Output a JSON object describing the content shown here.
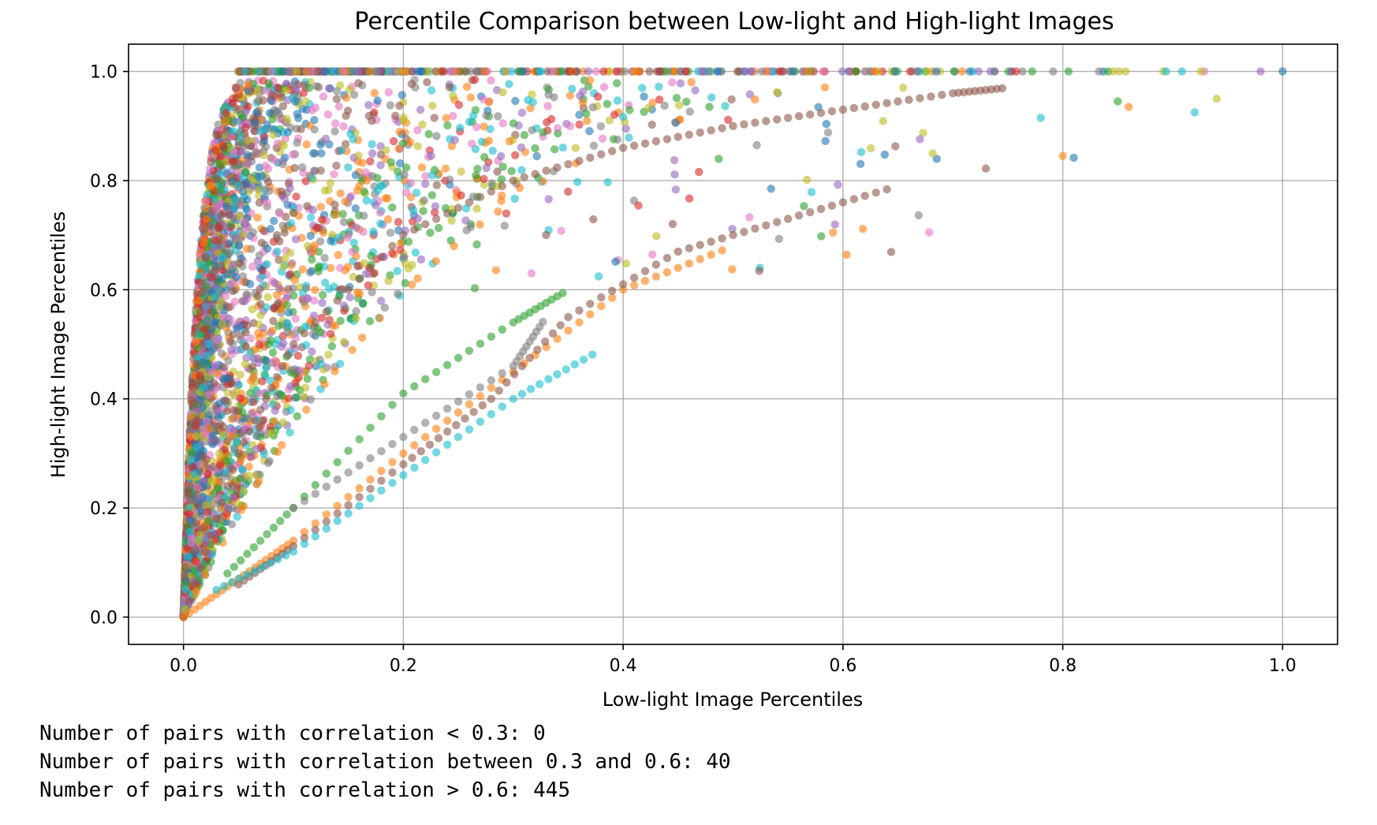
{
  "chart_data": {
    "type": "scatter",
    "title": "Percentile Comparison between Low-light and High-light Images",
    "xlabel": "Low-light Image Percentiles",
    "ylabel": "High-light Image Percentiles",
    "xlim": [
      -0.05,
      1.05
    ],
    "ylim": [
      -0.05,
      1.05
    ],
    "xticks": [
      "0.0",
      "0.2",
      "0.4",
      "0.6",
      "0.8",
      "1.0"
    ],
    "yticks": [
      "0.0",
      "0.2",
      "0.4",
      "0.6",
      "0.8",
      "1.0"
    ],
    "grid": true,
    "legend": "none",
    "series_count_approx": 485,
    "palette": [
      "#1f77b4",
      "#ff7f0e",
      "#2ca02c",
      "#d62728",
      "#9467bd",
      "#8c564b",
      "#e377c2",
      "#7f7f7f",
      "#bcbd22",
      "#17becf"
    ],
    "marker_alpha": 0.6,
    "representative_series": [
      {
        "color": "#8c564b",
        "x": [
          0,
          0.05,
          0.1,
          0.2,
          0.3,
          0.4,
          0.5,
          0.6,
          0.7,
          0.75
        ],
        "y": [
          0,
          0.3,
          0.5,
          0.7,
          0.8,
          0.86,
          0.9,
          0.93,
          0.96,
          0.97
        ]
      },
      {
        "color": "#ff7f0e",
        "x": [
          0,
          0.05,
          0.1,
          0.2,
          0.3,
          0.4,
          0.5
        ],
        "y": [
          0,
          0.07,
          0.14,
          0.3,
          0.45,
          0.6,
          0.68
        ]
      },
      {
        "color": "#8c564b",
        "x": [
          0.05,
          0.1,
          0.2,
          0.28,
          0.35,
          0.45,
          0.55,
          0.65
        ],
        "y": [
          0.06,
          0.13,
          0.28,
          0.4,
          0.55,
          0.67,
          0.73,
          0.79
        ]
      },
      {
        "color": "#17becf",
        "x": [
          0.03,
          0.1,
          0.2,
          0.3,
          0.38
        ],
        "y": [
          0.05,
          0.12,
          0.26,
          0.4,
          0.49
        ]
      },
      {
        "color": "#2ca02c",
        "x": [
          0.04,
          0.1,
          0.2,
          0.3,
          0.35
        ],
        "y": [
          0.08,
          0.2,
          0.41,
          0.54,
          0.6
        ]
      },
      {
        "color": "#7f7f7f",
        "x": [
          0.1,
          0.2,
          0.3,
          0.33
        ],
        "y": [
          0.2,
          0.33,
          0.46,
          0.55
        ]
      }
    ]
  },
  "output_lines": [
    "Number of pairs with correlation < 0.3: 0",
    "Number of pairs with correlation between 0.3 and 0.6: 40",
    "Number of pairs with correlation > 0.6: 445"
  ]
}
